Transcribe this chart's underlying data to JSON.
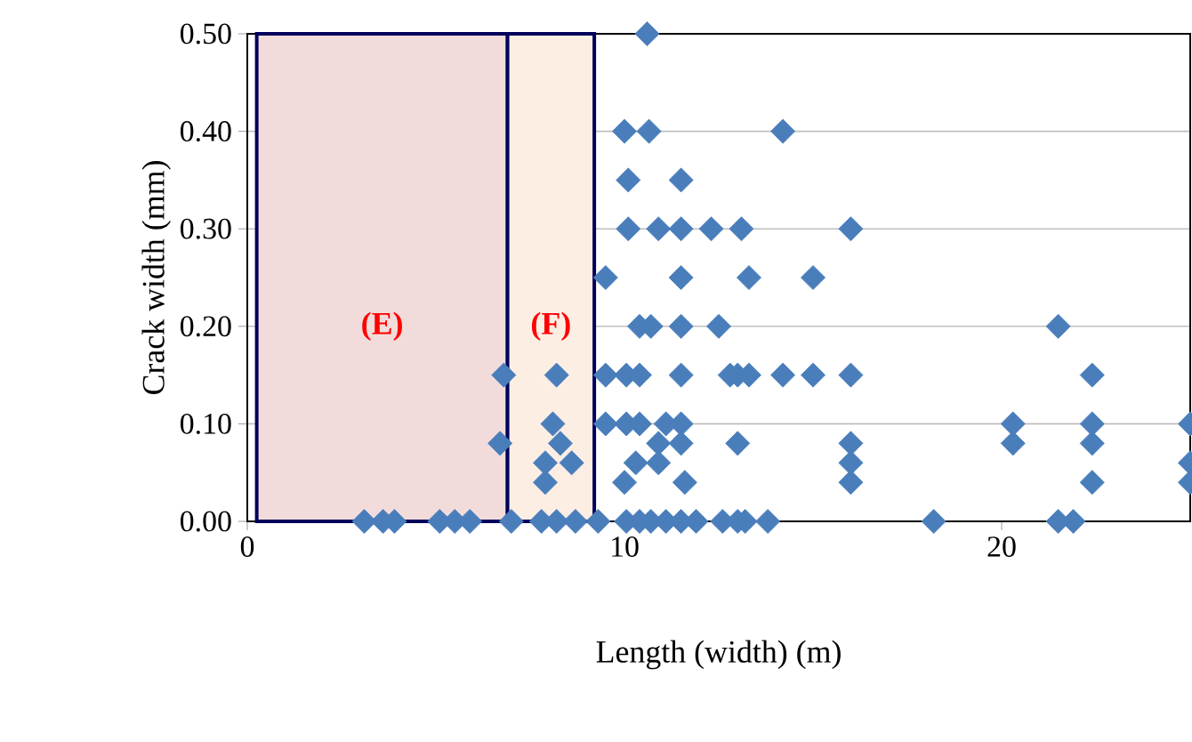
{
  "chart_data": {
    "type": "scatter",
    "xlabel": "Length (width) (m)",
    "ylabel": "Crack width (mm)",
    "xlim": [
      0,
      25
    ],
    "xticks": [
      0,
      10,
      20
    ],
    "ylim": [
      0,
      0.5
    ],
    "yticks": [
      {
        "value": 0,
        "label": "0.00"
      },
      {
        "value": 0.1,
        "label": "0.10"
      },
      {
        "value": 0.2,
        "label": "0.20"
      },
      {
        "value": 0.3,
        "label": "0.30"
      },
      {
        "value": 0.4,
        "label": "0.40"
      },
      {
        "value": 0.5,
        "label": "0.50"
      }
    ],
    "grid": "y",
    "marker": "diamond",
    "bands": [
      {
        "axis": "x",
        "from": 0.25,
        "to": 6.9,
        "label": "(E)",
        "color": "#f2dcdb"
      },
      {
        "axis": "x",
        "from": 6.9,
        "to": 9.2,
        "label": "(F)",
        "color": "#fdeee4"
      }
    ],
    "series": [
      {
        "color": "#4a7ebb",
        "x": [
          10.6,
          10.0,
          10.65,
          10.1,
          11.5,
          10.1,
          10.9,
          11.5,
          12.3,
          13.1,
          16.0,
          14.2,
          9.5,
          11.5,
          13.3,
          15.0,
          10.4,
          10.7,
          11.5,
          12.5,
          21.5,
          6.8,
          8.2,
          9.5,
          10.05,
          10.4,
          11.5,
          12.8,
          13.0,
          13.3,
          14.2,
          15.0,
          16.0,
          22.4,
          8.1,
          9.5,
          10.05,
          10.4,
          11.1,
          11.5,
          20.3,
          22.4,
          25.0,
          6.7,
          8.3,
          10.9,
          11.5,
          13.0,
          16.0,
          20.3,
          22.4,
          8.6,
          7.9,
          10.3,
          10.9,
          16.0,
          25.0,
          7.9,
          10.0,
          11.6,
          16.0,
          22.4,
          25.0,
          3.1,
          3.6,
          3.9,
          5.1,
          5.5,
          5.9,
          7.0,
          7.8,
          8.2,
          8.7,
          9.3,
          10.05,
          10.4,
          10.7,
          11.1,
          11.5,
          11.9,
          12.6,
          13.0,
          13.2,
          13.8,
          18.2,
          21.5,
          21.9
        ],
        "values": [
          0.5,
          0.4,
          0.4,
          0.35,
          0.35,
          0.3,
          0.3,
          0.3,
          0.3,
          0.3,
          0.3,
          0.4,
          0.25,
          0.25,
          0.25,
          0.25,
          0.2,
          0.2,
          0.2,
          0.2,
          0.2,
          0.15,
          0.15,
          0.15,
          0.15,
          0.15,
          0.15,
          0.15,
          0.15,
          0.15,
          0.15,
          0.15,
          0.15,
          0.15,
          0.1,
          0.1,
          0.1,
          0.1,
          0.1,
          0.1,
          0.1,
          0.1,
          0.1,
          0.08,
          0.08,
          0.08,
          0.08,
          0.08,
          0.08,
          0.08,
          0.08,
          0.06,
          0.06,
          0.06,
          0.06,
          0.06,
          0.06,
          0.04,
          0.04,
          0.04,
          0.04,
          0.04,
          0.04,
          0,
          0,
          0,
          0,
          0,
          0,
          0,
          0,
          0,
          0,
          0,
          0,
          0,
          0,
          0,
          0,
          0,
          0,
          0,
          0,
          0,
          0,
          0,
          0
        ]
      }
    ]
  }
}
